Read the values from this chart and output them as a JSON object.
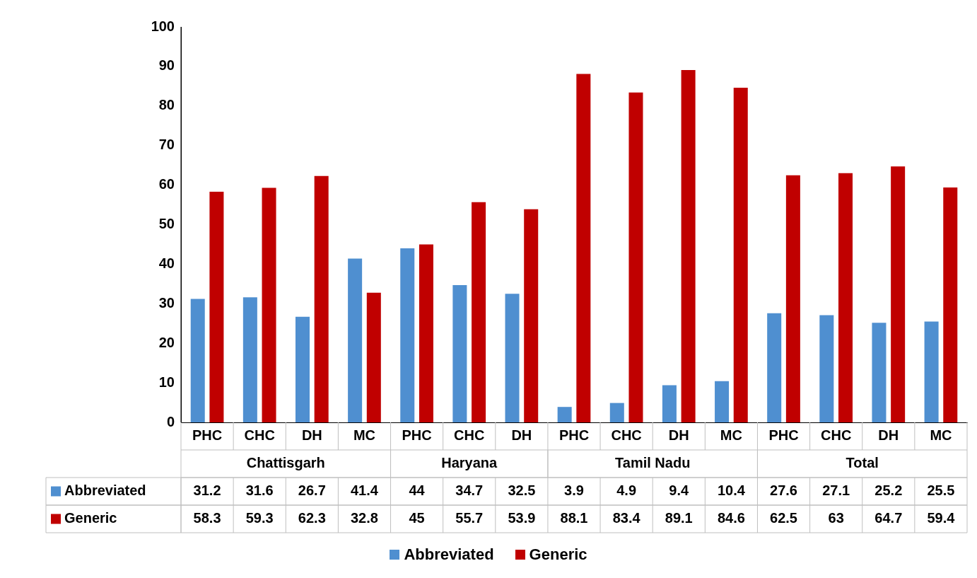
{
  "chart_data": {
    "type": "bar",
    "categories": [
      "PHC",
      "CHC",
      "DH",
      "MC",
      "PHC",
      "CHC",
      "DH",
      "PHC",
      "CHC",
      "DH",
      "MC",
      "PHC",
      "CHC",
      "DH",
      "MC"
    ],
    "series": [
      {
        "name": "Abbreviated",
        "color": "#4f8fd0",
        "values": [
          31.2,
          31.6,
          26.7,
          41.4,
          44,
          34.7,
          32.5,
          3.9,
          4.9,
          9.4,
          10.4,
          27.6,
          27.1,
          25.2,
          25.5
        ]
      },
      {
        "name": "Generic",
        "color": "#c00000",
        "values": [
          58.3,
          59.3,
          62.3,
          32.8,
          45,
          55.7,
          53.9,
          88.1,
          83.4,
          89.1,
          84.6,
          62.5,
          63,
          64.7,
          59.4
        ]
      }
    ],
    "annotations": [
      "Chattisgarh",
      "Haryana",
      "Tamil Nadu",
      "Total"
    ],
    "ylim": [
      0,
      100
    ],
    "yticks": [
      0,
      10,
      20,
      30,
      40,
      50,
      60,
      70,
      80,
      90,
      100
    ],
    "grid": false,
    "legend": "bottom",
    "data_labels": true
  }
}
